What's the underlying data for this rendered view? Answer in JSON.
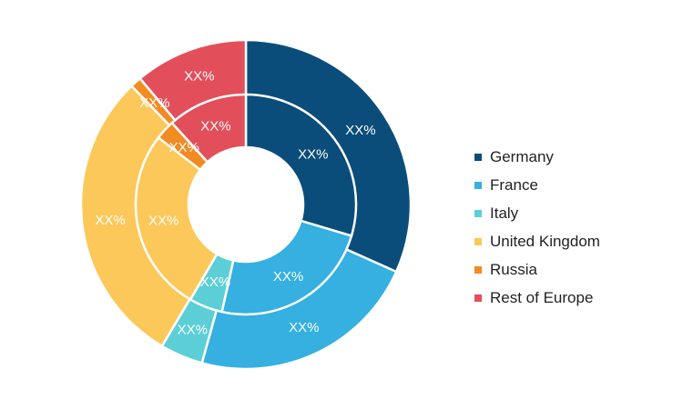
{
  "chart_data": {
    "type": "pie",
    "variant": "double-donut",
    "title": "",
    "categories": [
      "Germany",
      "France",
      "Italy",
      "United Kingdom",
      "Russia",
      "Rest of Europe"
    ],
    "colors": [
      "#0b4d7a",
      "#35b0e0",
      "#5ccfd6",
      "#fcc85a",
      "#f28b22",
      "#e24f5b"
    ],
    "series": [
      {
        "ring": "outer",
        "values": [
          31.7,
          22.6,
          4.2,
          29.3,
          1.1,
          11.1
        ],
        "labels": [
          "XX%",
          "XX%",
          "XX%",
          "XX%",
          "XX%",
          "XX%"
        ]
      },
      {
        "ring": "inner",
        "values": [
          29.6,
          23.9,
          4.9,
          27.0,
          2.9,
          11.7
        ],
        "labels": [
          "XX%",
          "XX%",
          "XX%",
          "XX%",
          "XX%",
          "XX%"
        ]
      }
    ],
    "legend_position": "right"
  }
}
